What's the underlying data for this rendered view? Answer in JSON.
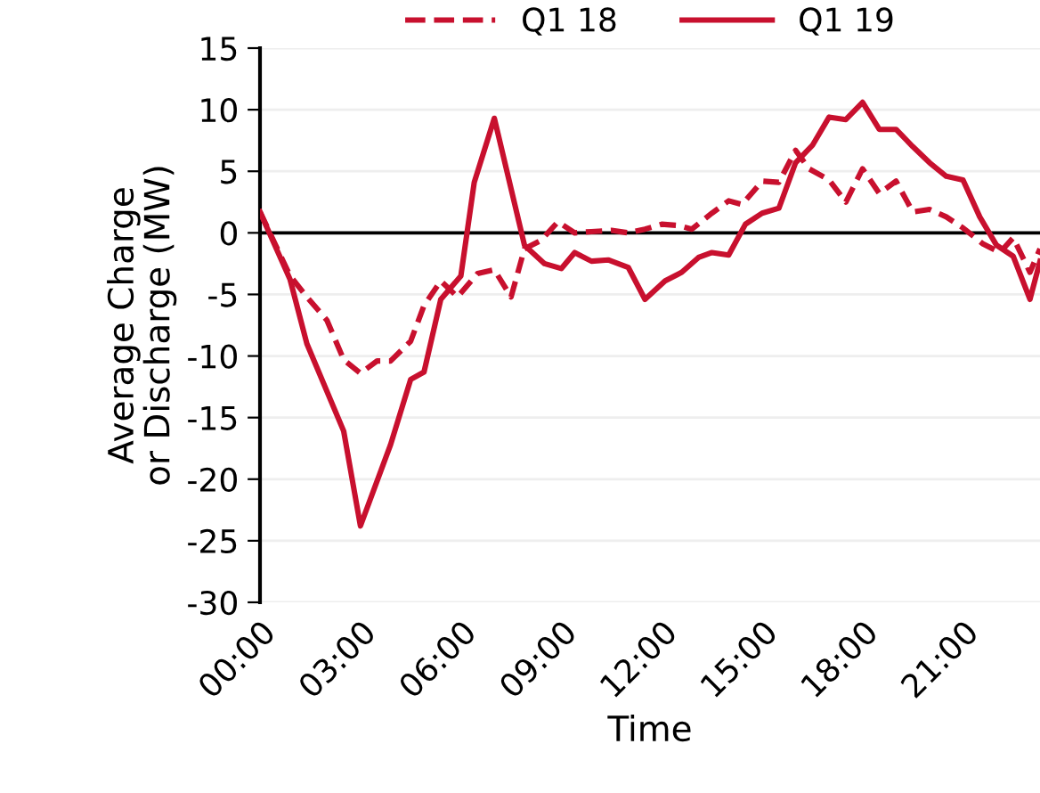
{
  "chart_data": {
    "type": "line",
    "xlabel": "Time",
    "ylabel": "Average Charge\nor Discharge (MW)",
    "xlim": [
      0,
      23.3
    ],
    "ylim": [
      -30,
      15
    ],
    "xticks": [
      {
        "value": 0,
        "label": "00:00"
      },
      {
        "value": 3,
        "label": "03:00"
      },
      {
        "value": 6,
        "label": "06:00"
      },
      {
        "value": 9,
        "label": "09:00"
      },
      {
        "value": 12,
        "label": "12:00"
      },
      {
        "value": 15,
        "label": "15:00"
      },
      {
        "value": 18,
        "label": "18:00"
      },
      {
        "value": 21,
        "label": "21:00"
      }
    ],
    "yticks": [
      -30,
      -25,
      -20,
      -15,
      -10,
      -5,
      0,
      5,
      10,
      15
    ],
    "grid": "y",
    "legend": "top",
    "ref_lines": [
      {
        "axis": "y",
        "value": 0,
        "color": "#000000"
      }
    ],
    "series": [
      {
        "name": "Q1 18",
        "color": "#c8102e",
        "line_style": "dashed",
        "x": [
          0,
          0.9,
          1.4,
          2.0,
          2.5,
          3.0,
          3.5,
          3.9,
          4.5,
          4.9,
          5.4,
          5.9,
          6.5,
          7.0,
          7.5,
          7.9,
          8.4,
          8.9,
          9.4,
          9.9,
          10.5,
          11.0,
          11.5,
          12.0,
          12.5,
          12.9,
          13.5,
          14.0,
          14.4,
          15.0,
          15.5,
          16.0,
          16.4,
          17.0,
          17.5,
          18.0,
          18.5,
          19.0,
          19.5,
          20.0,
          20.5,
          21.0,
          21.6,
          22.1,
          22.5,
          23.0,
          23.3
        ],
        "values": [
          1.7,
          -3.5,
          -5.2,
          -7.1,
          -10.3,
          -11.4,
          -10.4,
          -10.4,
          -8.8,
          -5.9,
          -3.9,
          -5.2,
          -3.3,
          -3.0,
          -5.2,
          -1.3,
          -0.6,
          0.9,
          0,
          0.1,
          0.2,
          0,
          0.3,
          0.7,
          0.6,
          0.3,
          1.6,
          2.6,
          2.3,
          4.2,
          4.1,
          6.7,
          5.2,
          4.3,
          2.5,
          5.2,
          3.2,
          4.2,
          1.7,
          1.9,
          1.3,
          0.4,
          -0.9,
          -1.6,
          -0.4,
          -3.2,
          -1.3
        ]
      },
      {
        "name": "Q1 19",
        "color": "#c8102e",
        "line_style": "solid",
        "x": [
          0,
          0.9,
          1.4,
          2.5,
          3.0,
          3.9,
          4.5,
          4.9,
          5.4,
          6.0,
          6.4,
          7.0,
          7.9,
          8.5,
          9.0,
          9.4,
          9.9,
          10.4,
          11.0,
          11.5,
          12.1,
          12.6,
          13.1,
          13.5,
          14.0,
          14.5,
          15.0,
          15.5,
          16.0,
          16.5,
          17.0,
          17.5,
          18.0,
          18.5,
          19.0,
          19.5,
          20.0,
          20.5,
          21.0,
          21.5,
          22.0,
          22.5,
          23.0,
          23.3
        ],
        "values": [
          1.7,
          -3.8,
          -9.0,
          -16.1,
          -23.8,
          -17.2,
          -11.9,
          -11.3,
          -5.4,
          -3.5,
          4.1,
          9.3,
          -1.0,
          -2.5,
          -2.9,
          -1.6,
          -2.3,
          -2.2,
          -2.8,
          -5.4,
          -3.9,
          -3.2,
          -2.0,
          -1.6,
          -1.8,
          0.7,
          1.6,
          2.0,
          5.7,
          7.1,
          9.4,
          9.2,
          10.6,
          8.4,
          8.4,
          7.0,
          5.7,
          4.6,
          4.3,
          1.3,
          -1.0,
          -1.9,
          -5.4,
          -2.3
        ]
      }
    ]
  }
}
